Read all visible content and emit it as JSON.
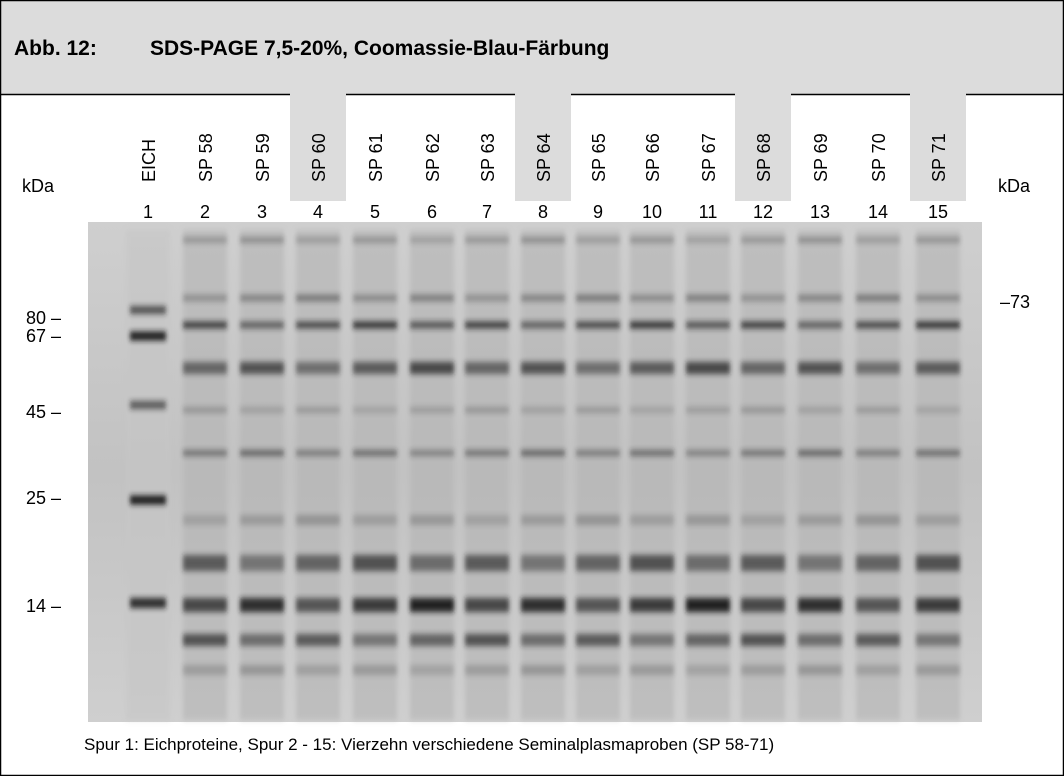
{
  "header": {
    "figure_label": "Abb. 12:",
    "title": "SDS-PAGE 7,5-20%, Coomassie-Blau-Färbung"
  },
  "axis_label_left": "kDa",
  "axis_label_right": "kDa",
  "lanes": [
    {
      "label": "EICH",
      "number": "1",
      "highlight": false
    },
    {
      "label": "SP 58",
      "number": "2",
      "highlight": false
    },
    {
      "label": "SP 59",
      "number": "3",
      "highlight": false
    },
    {
      "label": "SP 60",
      "number": "4",
      "highlight": true
    },
    {
      "label": "SP 61",
      "number": "5",
      "highlight": false
    },
    {
      "label": "SP 62",
      "number": "6",
      "highlight": false
    },
    {
      "label": "SP 63",
      "number": "7",
      "highlight": false
    },
    {
      "label": "SP 64",
      "number": "8",
      "highlight": true
    },
    {
      "label": "SP 65",
      "number": "9",
      "highlight": false
    },
    {
      "label": "SP 66",
      "number": "10",
      "highlight": false
    },
    {
      "label": "SP 67",
      "number": "11",
      "highlight": false
    },
    {
      "label": "SP 68",
      "number": "12",
      "highlight": true
    },
    {
      "label": "SP 69",
      "number": "13",
      "highlight": false
    },
    {
      "label": "SP 70",
      "number": "14",
      "highlight": false
    },
    {
      "label": "SP 71",
      "number": "15",
      "highlight": true
    }
  ],
  "markers_left": [
    "80 –",
    "67 –",
    "45 –",
    "25 –",
    "14 –"
  ],
  "markers_right": [
    "–73"
  ],
  "caption": "Spur 1: Eichproteine, Spur 2 - 15: Vierzehn verschiedene Seminalplasmaproben (SP 58-71)"
}
